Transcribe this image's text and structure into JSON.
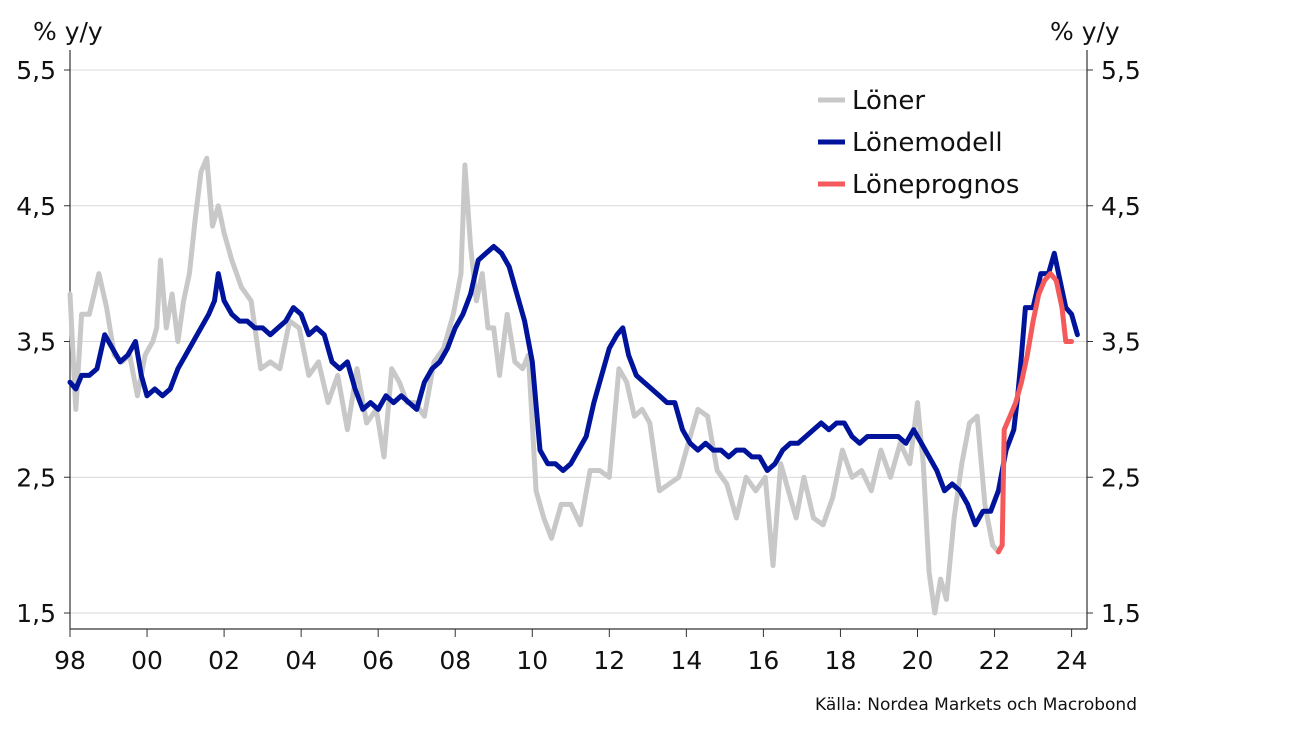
{
  "chart_data": {
    "type": "line",
    "left_unit": "% y/y",
    "right_unit": "% y/y",
    "y_ticks": [
      "1,5",
      "2,5",
      "3,5",
      "4,5",
      "5,5"
    ],
    "y_tick_values": [
      1.5,
      2.5,
      3.5,
      4.5,
      5.5
    ],
    "ylim": [
      1.5,
      5.5
    ],
    "x_ticks": [
      "98",
      "00",
      "02",
      "04",
      "06",
      "08",
      "10",
      "12",
      "14",
      "16",
      "18",
      "20",
      "22",
      "24"
    ],
    "x_tick_values": [
      1998,
      2000,
      2002,
      2004,
      2006,
      2008,
      2010,
      2012,
      2014,
      2016,
      2018,
      2020,
      2022,
      2024
    ],
    "xlim": [
      1998,
      2024.4
    ],
    "grid": "horizontal",
    "legend_position": "top-right",
    "series": [
      {
        "name": "Löner",
        "color": "#c8c8c8",
        "points": [
          [
            1998.0,
            3.85
          ],
          [
            1998.15,
            3.0
          ],
          [
            1998.3,
            3.7
          ],
          [
            1998.5,
            3.7
          ],
          [
            1998.75,
            4.0
          ],
          [
            1998.95,
            3.75
          ],
          [
            1999.15,
            3.4
          ],
          [
            1999.35,
            3.35
          ],
          [
            1999.55,
            3.4
          ],
          [
            1999.75,
            3.1
          ],
          [
            1999.95,
            3.4
          ],
          [
            2000.15,
            3.5
          ],
          [
            2000.25,
            3.6
          ],
          [
            2000.35,
            4.1
          ],
          [
            2000.5,
            3.6
          ],
          [
            2000.65,
            3.85
          ],
          [
            2000.8,
            3.5
          ],
          [
            2000.95,
            3.8
          ],
          [
            2001.1,
            4.0
          ],
          [
            2001.25,
            4.4
          ],
          [
            2001.4,
            4.75
          ],
          [
            2001.55,
            4.85
          ],
          [
            2001.7,
            4.35
          ],
          [
            2001.85,
            4.5
          ],
          [
            2002.0,
            4.3
          ],
          [
            2002.2,
            4.1
          ],
          [
            2002.45,
            3.9
          ],
          [
            2002.7,
            3.8
          ],
          [
            2002.95,
            3.3
          ],
          [
            2003.2,
            3.35
          ],
          [
            2003.45,
            3.3
          ],
          [
            2003.7,
            3.65
          ],
          [
            2003.95,
            3.6
          ],
          [
            2004.2,
            3.25
          ],
          [
            2004.45,
            3.35
          ],
          [
            2004.7,
            3.05
          ],
          [
            2004.95,
            3.25
          ],
          [
            2005.2,
            2.85
          ],
          [
            2005.45,
            3.3
          ],
          [
            2005.7,
            2.9
          ],
          [
            2005.95,
            3.0
          ],
          [
            2006.15,
            2.65
          ],
          [
            2006.35,
            3.3
          ],
          [
            2006.55,
            3.2
          ],
          [
            2006.75,
            3.05
          ],
          [
            2006.95,
            3.05
          ],
          [
            2007.2,
            2.95
          ],
          [
            2007.45,
            3.35
          ],
          [
            2007.7,
            3.45
          ],
          [
            2007.95,
            3.7
          ],
          [
            2008.15,
            4.0
          ],
          [
            2008.25,
            4.8
          ],
          [
            2008.4,
            4.2
          ],
          [
            2008.55,
            3.8
          ],
          [
            2008.7,
            4.0
          ],
          [
            2008.85,
            3.6
          ],
          [
            2009.0,
            3.6
          ],
          [
            2009.15,
            3.25
          ],
          [
            2009.35,
            3.7
          ],
          [
            2009.55,
            3.35
          ],
          [
            2009.75,
            3.3
          ],
          [
            2009.9,
            3.4
          ],
          [
            2010.1,
            2.4
          ],
          [
            2010.3,
            2.2
          ],
          [
            2010.5,
            2.05
          ],
          [
            2010.75,
            2.3
          ],
          [
            2011.0,
            2.3
          ],
          [
            2011.25,
            2.15
          ],
          [
            2011.5,
            2.55
          ],
          [
            2011.75,
            2.55
          ],
          [
            2012.0,
            2.5
          ],
          [
            2012.25,
            3.3
          ],
          [
            2012.45,
            3.2
          ],
          [
            2012.65,
            2.95
          ],
          [
            2012.85,
            3.0
          ],
          [
            2013.05,
            2.9
          ],
          [
            2013.3,
            2.4
          ],
          [
            2013.55,
            2.45
          ],
          [
            2013.8,
            2.5
          ],
          [
            2014.05,
            2.75
          ],
          [
            2014.3,
            3.0
          ],
          [
            2014.55,
            2.95
          ],
          [
            2014.8,
            2.55
          ],
          [
            2015.05,
            2.45
          ],
          [
            2015.3,
            2.2
          ],
          [
            2015.55,
            2.5
          ],
          [
            2015.8,
            2.4
          ],
          [
            2016.05,
            2.5
          ],
          [
            2016.25,
            1.85
          ],
          [
            2016.45,
            2.6
          ],
          [
            2016.65,
            2.4
          ],
          [
            2016.85,
            2.2
          ],
          [
            2017.05,
            2.5
          ],
          [
            2017.3,
            2.2
          ],
          [
            2017.55,
            2.15
          ],
          [
            2017.8,
            2.35
          ],
          [
            2018.05,
            2.7
          ],
          [
            2018.3,
            2.5
          ],
          [
            2018.55,
            2.55
          ],
          [
            2018.8,
            2.4
          ],
          [
            2019.05,
            2.7
          ],
          [
            2019.3,
            2.5
          ],
          [
            2019.55,
            2.75
          ],
          [
            2019.8,
            2.6
          ],
          [
            2020.0,
            3.05
          ],
          [
            2020.15,
            2.6
          ],
          [
            2020.3,
            1.8
          ],
          [
            2020.45,
            1.5
          ],
          [
            2020.6,
            1.75
          ],
          [
            2020.75,
            1.6
          ],
          [
            2020.95,
            2.2
          ],
          [
            2021.15,
            2.6
          ],
          [
            2021.35,
            2.9
          ],
          [
            2021.55,
            2.95
          ],
          [
            2021.75,
            2.3
          ],
          [
            2021.95,
            2.0
          ],
          [
            2022.1,
            1.95
          ]
        ]
      },
      {
        "name": "Lönemodell",
        "color": "#00149b",
        "points": [
          [
            1998.0,
            3.2
          ],
          [
            1998.15,
            3.15
          ],
          [
            1998.3,
            3.25
          ],
          [
            1998.5,
            3.25
          ],
          [
            1998.7,
            3.3
          ],
          [
            1998.9,
            3.55
          ],
          [
            1999.1,
            3.45
          ],
          [
            1999.3,
            3.35
          ],
          [
            1999.5,
            3.4
          ],
          [
            1999.7,
            3.5
          ],
          [
            1999.85,
            3.25
          ],
          [
            2000.0,
            3.1
          ],
          [
            2000.2,
            3.15
          ],
          [
            2000.4,
            3.1
          ],
          [
            2000.6,
            3.15
          ],
          [
            2000.8,
            3.3
          ],
          [
            2001.0,
            3.4
          ],
          [
            2001.2,
            3.5
          ],
          [
            2001.4,
            3.6
          ],
          [
            2001.6,
            3.7
          ],
          [
            2001.75,
            3.8
          ],
          [
            2001.85,
            4.0
          ],
          [
            2002.0,
            3.8
          ],
          [
            2002.2,
            3.7
          ],
          [
            2002.4,
            3.65
          ],
          [
            2002.6,
            3.65
          ],
          [
            2002.8,
            3.6
          ],
          [
            2003.0,
            3.6
          ],
          [
            2003.2,
            3.55
          ],
          [
            2003.4,
            3.6
          ],
          [
            2003.6,
            3.65
          ],
          [
            2003.8,
            3.75
          ],
          [
            2004.0,
            3.7
          ],
          [
            2004.2,
            3.55
          ],
          [
            2004.4,
            3.6
          ],
          [
            2004.6,
            3.55
          ],
          [
            2004.8,
            3.35
          ],
          [
            2005.0,
            3.3
          ],
          [
            2005.2,
            3.35
          ],
          [
            2005.4,
            3.15
          ],
          [
            2005.6,
            3.0
          ],
          [
            2005.8,
            3.05
          ],
          [
            2006.0,
            3.0
          ],
          [
            2006.2,
            3.1
          ],
          [
            2006.4,
            3.05
          ],
          [
            2006.6,
            3.1
          ],
          [
            2006.8,
            3.05
          ],
          [
            2007.0,
            3.0
          ],
          [
            2007.2,
            3.2
          ],
          [
            2007.4,
            3.3
          ],
          [
            2007.6,
            3.35
          ],
          [
            2007.8,
            3.45
          ],
          [
            2008.0,
            3.6
          ],
          [
            2008.2,
            3.7
          ],
          [
            2008.4,
            3.85
          ],
          [
            2008.6,
            4.1
          ],
          [
            2008.8,
            4.15
          ],
          [
            2009.0,
            4.2
          ],
          [
            2009.2,
            4.15
          ],
          [
            2009.4,
            4.05
          ],
          [
            2009.6,
            3.85
          ],
          [
            2009.8,
            3.65
          ],
          [
            2010.0,
            3.35
          ],
          [
            2010.2,
            2.7
          ],
          [
            2010.4,
            2.6
          ],
          [
            2010.6,
            2.6
          ],
          [
            2010.8,
            2.55
          ],
          [
            2011.0,
            2.6
          ],
          [
            2011.2,
            2.7
          ],
          [
            2011.4,
            2.8
          ],
          [
            2011.6,
            3.05
          ],
          [
            2011.8,
            3.25
          ],
          [
            2012.0,
            3.45
          ],
          [
            2012.2,
            3.55
          ],
          [
            2012.35,
            3.6
          ],
          [
            2012.5,
            3.4
          ],
          [
            2012.7,
            3.25
          ],
          [
            2012.9,
            3.2
          ],
          [
            2013.1,
            3.15
          ],
          [
            2013.3,
            3.1
          ],
          [
            2013.5,
            3.05
          ],
          [
            2013.7,
            3.05
          ],
          [
            2013.9,
            2.85
          ],
          [
            2014.1,
            2.75
          ],
          [
            2014.3,
            2.7
          ],
          [
            2014.5,
            2.75
          ],
          [
            2014.7,
            2.7
          ],
          [
            2014.9,
            2.7
          ],
          [
            2015.1,
            2.65
          ],
          [
            2015.3,
            2.7
          ],
          [
            2015.5,
            2.7
          ],
          [
            2015.7,
            2.65
          ],
          [
            2015.9,
            2.65
          ],
          [
            2016.1,
            2.55
          ],
          [
            2016.3,
            2.6
          ],
          [
            2016.5,
            2.7
          ],
          [
            2016.7,
            2.75
          ],
          [
            2016.9,
            2.75
          ],
          [
            2017.1,
            2.8
          ],
          [
            2017.3,
            2.85
          ],
          [
            2017.5,
            2.9
          ],
          [
            2017.7,
            2.85
          ],
          [
            2017.9,
            2.9
          ],
          [
            2018.1,
            2.9
          ],
          [
            2018.3,
            2.8
          ],
          [
            2018.5,
            2.75
          ],
          [
            2018.7,
            2.8
          ],
          [
            2018.9,
            2.8
          ],
          [
            2019.1,
            2.8
          ],
          [
            2019.3,
            2.8
          ],
          [
            2019.5,
            2.8
          ],
          [
            2019.7,
            2.75
          ],
          [
            2019.9,
            2.85
          ],
          [
            2020.1,
            2.75
          ],
          [
            2020.3,
            2.65
          ],
          [
            2020.5,
            2.55
          ],
          [
            2020.7,
            2.4
          ],
          [
            2020.9,
            2.45
          ],
          [
            2021.1,
            2.4
          ],
          [
            2021.3,
            2.3
          ],
          [
            2021.5,
            2.15
          ],
          [
            2021.7,
            2.25
          ],
          [
            2021.9,
            2.25
          ],
          [
            2022.1,
            2.4
          ],
          [
            2022.3,
            2.7
          ],
          [
            2022.5,
            2.85
          ],
          [
            2022.6,
            3.1
          ],
          [
            2022.7,
            3.4
          ],
          [
            2022.8,
            3.75
          ],
          [
            2023.0,
            3.75
          ],
          [
            2023.2,
            4.0
          ],
          [
            2023.4,
            4.0
          ],
          [
            2023.55,
            4.15
          ],
          [
            2023.7,
            3.95
          ],
          [
            2023.85,
            3.75
          ],
          [
            2024.0,
            3.7
          ],
          [
            2024.15,
            3.55
          ]
        ]
      },
      {
        "name": "Löneprognos",
        "color": "#f55a5a",
        "points": [
          [
            2022.1,
            1.95
          ],
          [
            2022.2,
            2.0
          ],
          [
            2022.25,
            2.85
          ],
          [
            2022.4,
            2.95
          ],
          [
            2022.55,
            3.05
          ],
          [
            2022.7,
            3.2
          ],
          [
            2022.85,
            3.4
          ],
          [
            2023.0,
            3.65
          ],
          [
            2023.15,
            3.85
          ],
          [
            2023.3,
            3.95
          ],
          [
            2023.45,
            4.0
          ],
          [
            2023.6,
            3.95
          ],
          [
            2023.75,
            3.75
          ],
          [
            2023.85,
            3.5
          ],
          [
            2024.0,
            3.5
          ]
        ]
      }
    ]
  },
  "footer": {
    "source": "Källa: Nordea Markets och Macrobond"
  }
}
